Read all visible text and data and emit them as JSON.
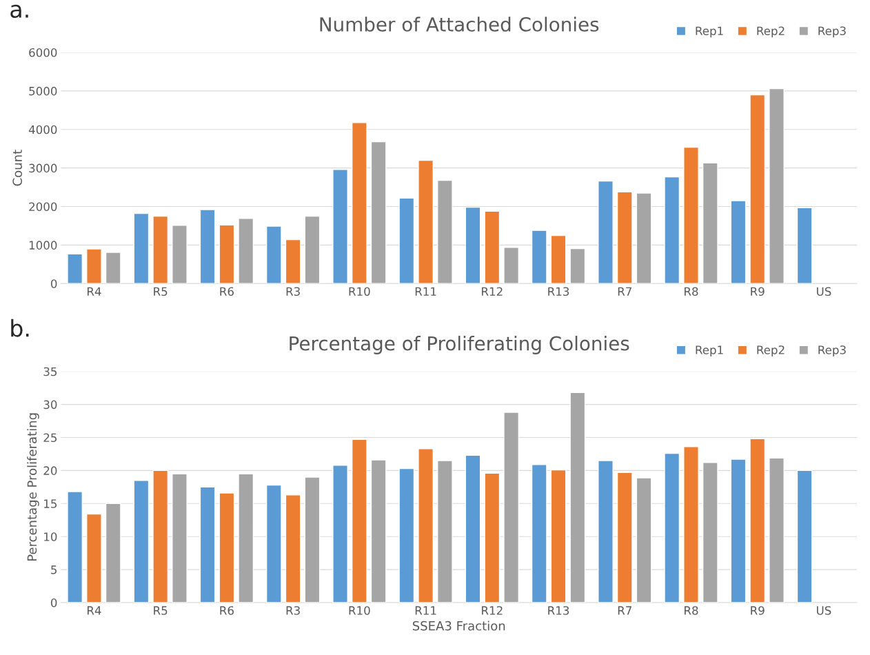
{
  "chart_data": [
    {
      "type": "bar",
      "title": "Number of Attached Colonies",
      "ylabel": "Count",
      "annotations": [
        "a."
      ],
      "categories": [
        "R4",
        "R5",
        "R6",
        "R3",
        "R10",
        "R11",
        "R12",
        "R13",
        "R7",
        "R8",
        "R9",
        "US"
      ],
      "series": [
        {
          "name": "Rep1",
          "color": "#5b9bd5",
          "values": [
            770,
            1820,
            1920,
            1490,
            2960,
            2220,
            1980,
            1380,
            2660,
            2770,
            2150,
            1970
          ]
        },
        {
          "name": "Rep2",
          "color": "#ed7d31",
          "values": [
            900,
            1750,
            1520,
            1140,
            4180,
            3200,
            1880,
            1250,
            2380,
            3540,
            4900,
            null
          ]
        },
        {
          "name": "Rep3",
          "color": "#a5a5a5",
          "values": [
            810,
            1510,
            1690,
            1750,
            3680,
            2680,
            940,
            910,
            2350,
            3130,
            5060,
            null
          ]
        }
      ],
      "ylim": [
        0,
        6000
      ],
      "yticks": [
        0,
        1000,
        2000,
        3000,
        4000,
        5000,
        6000
      ],
      "grid": "y",
      "legend": "top right"
    },
    {
      "type": "bar",
      "title": "Percentage of Proliferating Colonies",
      "xlabel": "SSEA3 Fraction",
      "ylabel": "Percentage Proliferating",
      "annotations": [
        "b."
      ],
      "categories": [
        "R4",
        "R5",
        "R6",
        "R3",
        "R10",
        "R11",
        "R12",
        "R13",
        "R7",
        "R8",
        "R9",
        "US"
      ],
      "series": [
        {
          "name": "Rep1",
          "color": "#5b9bd5",
          "values": [
            16.8,
            18.5,
            17.5,
            17.8,
            20.8,
            20.3,
            22.3,
            20.9,
            21.5,
            22.6,
            21.7,
            20.0
          ]
        },
        {
          "name": "Rep2",
          "color": "#ed7d31",
          "values": [
            13.4,
            20.0,
            16.6,
            16.3,
            24.7,
            23.3,
            19.6,
            20.1,
            19.7,
            23.6,
            24.8,
            null
          ]
        },
        {
          "name": "Rep3",
          "color": "#a5a5a5",
          "values": [
            15.0,
            19.5,
            19.5,
            19.0,
            21.6,
            21.5,
            28.8,
            31.8,
            18.9,
            21.2,
            21.9,
            null
          ]
        }
      ],
      "ylim": [
        0,
        35
      ],
      "yticks": [
        0,
        5,
        10,
        15,
        20,
        25,
        30,
        35
      ],
      "grid": "y",
      "legend": "top right"
    }
  ]
}
